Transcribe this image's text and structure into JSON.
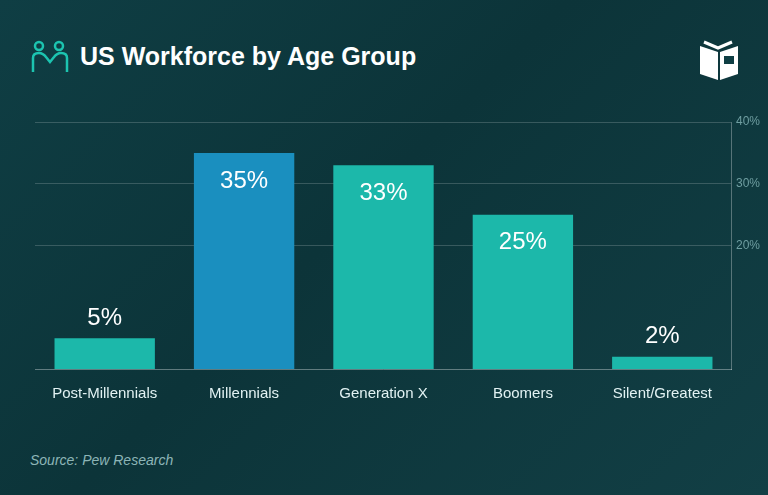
{
  "chart_data": {
    "type": "bar",
    "title": "US Workforce by Age Group",
    "source": "Source: Pew Research",
    "categories": [
      "Post-Millennials",
      "Millennials",
      "Generation X",
      "Boomers",
      "Silent/Greatest"
    ],
    "values": [
      5,
      35,
      33,
      25,
      2
    ],
    "value_labels": [
      "5%",
      "35%",
      "33%",
      "25%",
      "2%"
    ],
    "colors": [
      "#1cb8aa",
      "#1a8fbf",
      "#1cb8aa",
      "#1cb8aa",
      "#1cb8aa"
    ],
    "ylim": [
      0,
      40
    ],
    "yticks": [
      {
        "value": 20,
        "label": "20%"
      },
      {
        "value": 30,
        "label": "30%"
      },
      {
        "value": 40,
        "label": "40%"
      }
    ],
    "grid": true,
    "data_labels": true
  }
}
